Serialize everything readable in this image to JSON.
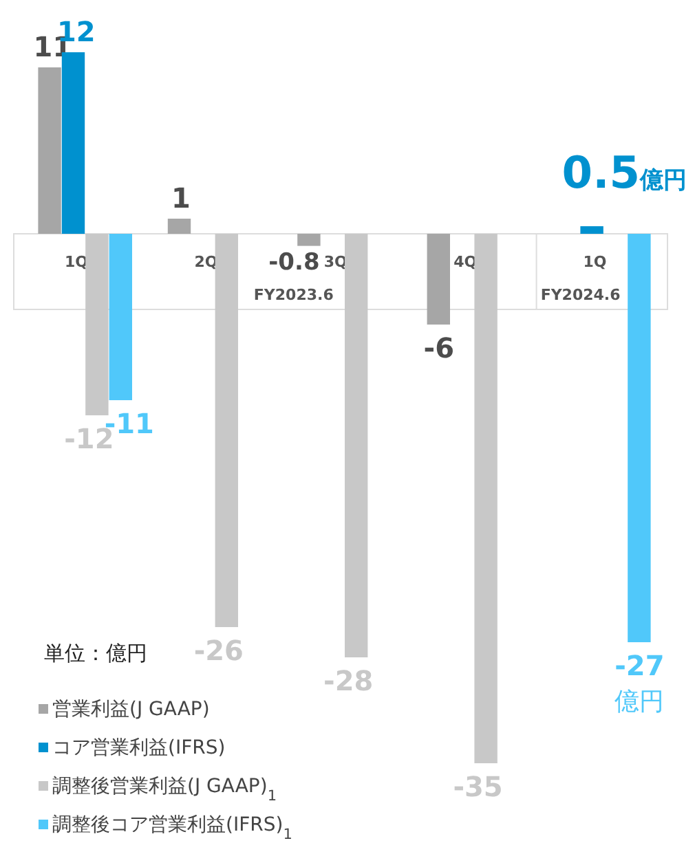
{
  "chart_data": {
    "type": "bar",
    "categories": [
      "1Q",
      "2Q",
      "3Q",
      "4Q",
      "1Q"
    ],
    "series": [
      {
        "name": "営業利益(J GAAP)",
        "color": "#a6a6a6",
        "values": [
          11,
          1,
          -0.8,
          -6,
          null
        ],
        "value_labels": [
          "11",
          "1",
          "-0.8",
          "-6",
          null
        ]
      },
      {
        "name": "コア営業利益(IFRS)",
        "color": "#0091cf",
        "values": [
          12,
          null,
          null,
          null,
          0.5
        ],
        "value_labels": [
          "12",
          null,
          null,
          null,
          "0.5億円"
        ]
      },
      {
        "name": "調整後営業利益(J GAAP)$_{1}$",
        "color": "#c8c8c8",
        "values": [
          -12,
          -26,
          -28,
          -35,
          null
        ],
        "value_labels": [
          "-12",
          "-26",
          "-28",
          "-35",
          null
        ]
      },
      {
        "name": "調整後コア営業利益(IFRS)$_{1}$",
        "color": "#50c8fa",
        "values": [
          -11,
          null,
          null,
          null,
          -27
        ],
        "value_labels": [
          "-11",
          null,
          null,
          null,
          "-27億円"
        ]
      }
    ],
    "annotations": [
      "FY2023.6",
      "FY2024.6",
      "単位：億円"
    ],
    "legend": "bottom left"
  }
}
